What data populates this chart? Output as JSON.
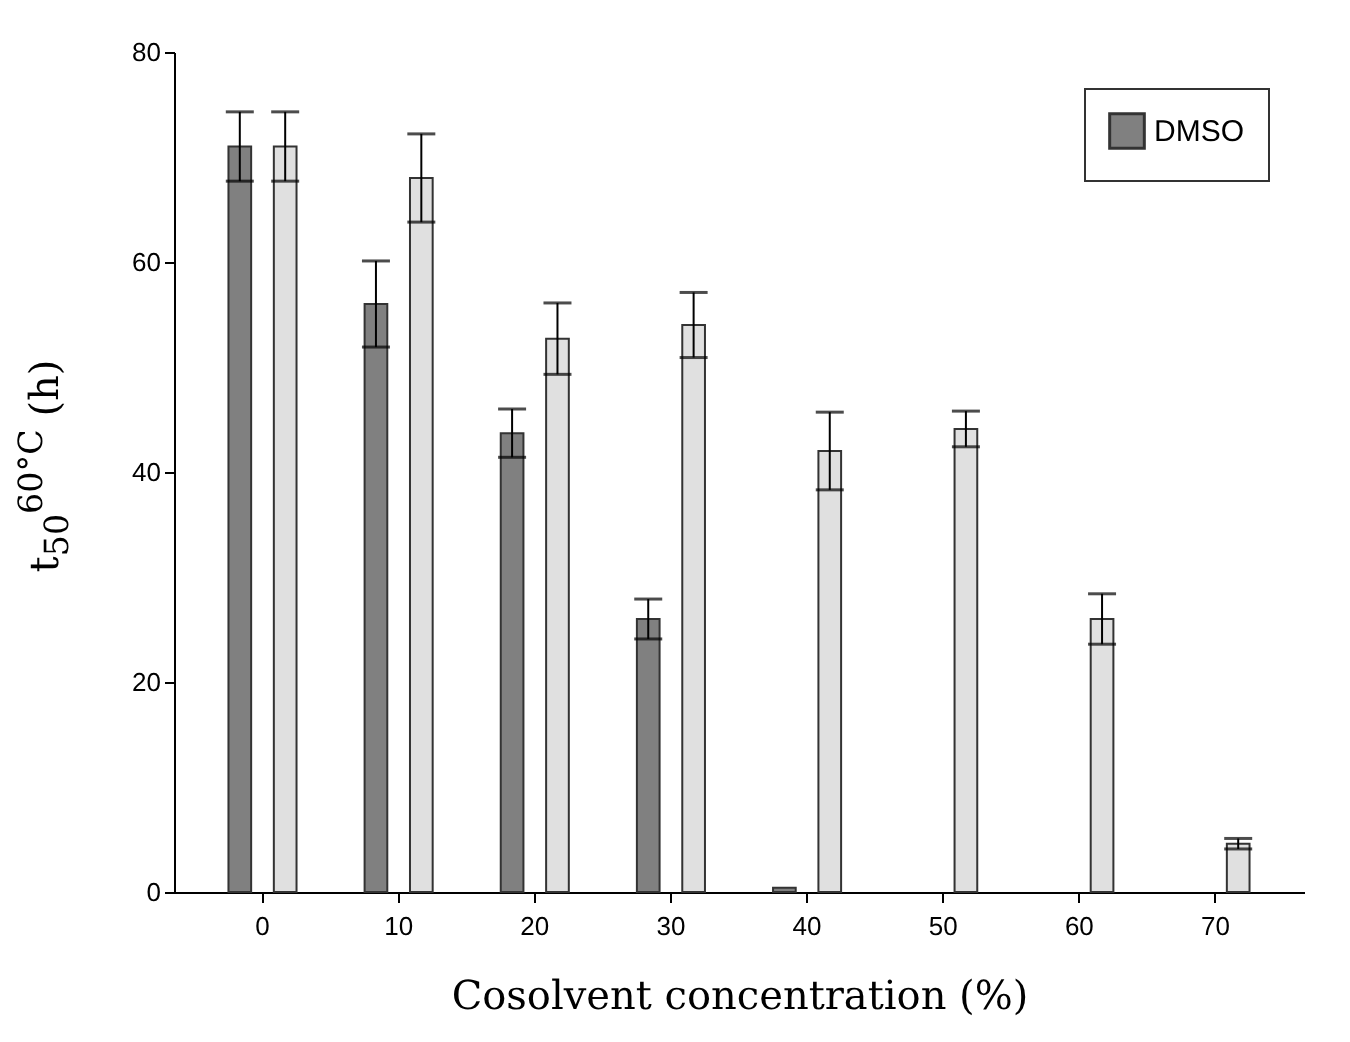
{
  "chart_data": {
    "type": "bar",
    "xlabel": "Cosolvent concentration (%)",
    "ylabel": "t$_{50}$$^{60°C}$ (h)",
    "categories": [
      "0",
      "10",
      "20",
      "30",
      "40",
      "50",
      "60",
      "70"
    ],
    "series": [
      {
        "name": "DMSO",
        "color": "#808080",
        "values": [
          71.0,
          56.0,
          43.7,
          26.0,
          0.4,
          null,
          null,
          null
        ],
        "errors": [
          3.3,
          4.1,
          2.3,
          1.9,
          null,
          null,
          null,
          null
        ]
      },
      {
        "color": "#e0e0e0",
        "values": [
          71.0,
          68.0,
          52.7,
          54.0,
          42.0,
          44.1,
          26.0,
          4.6
        ],
        "errors": [
          3.3,
          4.2,
          3.4,
          3.1,
          3.7,
          1.7,
          2.4,
          0.5
        ]
      }
    ],
    "ylim": [
      0,
      80
    ],
    "yticks": [
      0,
      20,
      40,
      60,
      80
    ],
    "legend": "top right",
    "grid": false
  }
}
